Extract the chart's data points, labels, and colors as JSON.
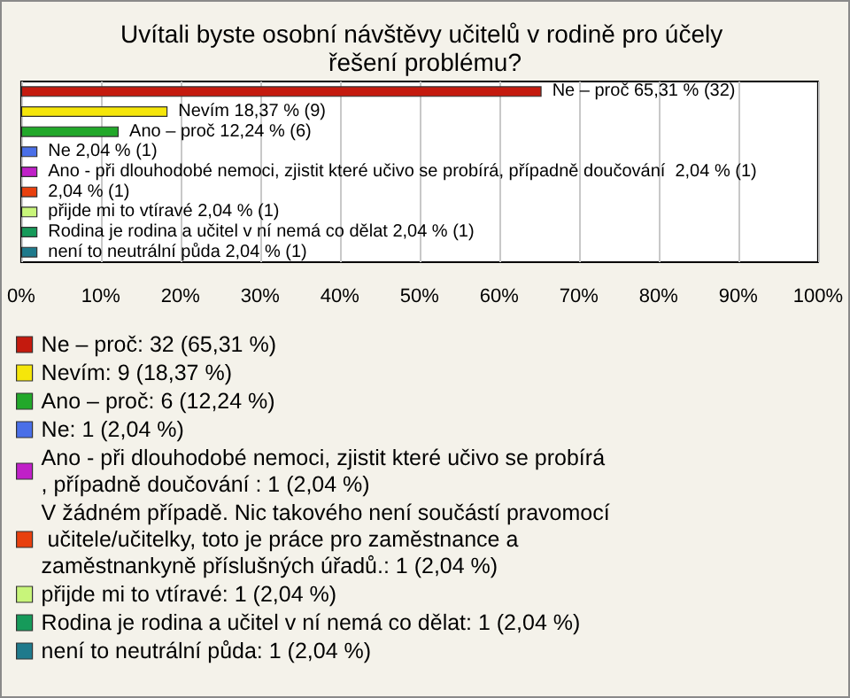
{
  "chart_data": {
    "type": "bar",
    "orientation": "horizontal",
    "title": "Uvítali byste osobní návštěvy učitelů v rodině pro účely řešení problému?",
    "categories": [
      null,
      null,
      null,
      null,
      null,
      null,
      null,
      null,
      null
    ],
    "series": [
      {
        "name": "Ne – proč: 32 (65,31 %)",
        "color": "#c41a0e",
        "values": [
          65.31,
          null,
          null,
          null,
          null,
          null,
          null,
          null,
          null
        ],
        "value_labels": [
          "Ne – proč 65,31 % (32)",
          null,
          null,
          null,
          null,
          null,
          null,
          null,
          null
        ]
      },
      {
        "name": "Nevím: 9 (18,37 %)",
        "color": "#f5e60a",
        "values": [
          null,
          18.37,
          null,
          null,
          null,
          null,
          null,
          null,
          null
        ],
        "value_labels": [
          null,
          "Nevím 18,37 % (9)",
          null,
          null,
          null,
          null,
          null,
          null,
          null
        ]
      },
      {
        "name": "Ano – proč: 6 (12,24 %)",
        "color": "#22a82a",
        "values": [
          null,
          null,
          12.24,
          null,
          null,
          null,
          null,
          null,
          null
        ],
        "value_labels": [
          null,
          null,
          "Ano – proč 12,24 % (6)",
          null,
          null,
          null,
          null,
          null,
          null
        ]
      },
      {
        "name": "Ne: 1 (2,04 %)",
        "color": "#4a6fe8",
        "values": [
          null,
          null,
          null,
          2.04,
          null,
          null,
          null,
          null,
          null
        ],
        "value_labels": [
          null,
          null,
          null,
          "Ne 2,04 % (1)",
          null,
          null,
          null,
          null,
          null
        ]
      },
      {
        "name": "Ano - při dlouhodobé nemoci, zjistit které učivo se probírá, případně doučování : 1 (2,04 %)",
        "color": "#c020c8",
        "values": [
          null,
          null,
          null,
          null,
          2.04,
          null,
          null,
          null,
          null
        ],
        "value_labels": [
          null,
          null,
          null,
          null,
          "Ano - při dlouhodobé nemoci, zjistit které učivo se probírá, případně doučování  2,04 % (1)",
          null,
          null,
          null,
          null
        ]
      },
      {
        "name": "V žádném případě. Nic takového není součástí pravomocí učitele/učitelky, toto je práce pro zaměstnance a zaměstnankyně příslušných úřadů.: 1 (2,04 %)",
        "color": "#e8400e",
        "values": [
          null,
          null,
          null,
          null,
          null,
          2.04,
          null,
          null,
          null
        ],
        "value_labels": [
          null,
          null,
          null,
          null,
          null,
          "2,04 % (1)",
          null,
          null,
          null
        ]
      },
      {
        "name": "přijde mi to vtíravé: 1 (2,04 %)",
        "color": "#c8f57a",
        "values": [
          null,
          null,
          null,
          null,
          null,
          null,
          2.04,
          null,
          null
        ],
        "value_labels": [
          null,
          null,
          null,
          null,
          null,
          null,
          "přijde mi to vtíravé 2,04 % (1)",
          null,
          null
        ]
      },
      {
        "name": "Rodina je rodina a učitel v ní nemá co dělat: 1 (2,04 %)",
        "color": "#169a5a",
        "values": [
          null,
          null,
          null,
          null,
          null,
          null,
          null,
          2.04,
          null
        ],
        "value_labels": [
          null,
          null,
          null,
          null,
          null,
          null,
          null,
          "Rodina je rodina a učitel v ní nemá co dělat 2,04 % (1)",
          null
        ]
      },
      {
        "name": "není to neutrální půda: 1 (2,04 %)",
        "color": "#1f7a8c",
        "values": [
          null,
          null,
          null,
          null,
          null,
          null,
          null,
          null,
          2.04
        ],
        "value_labels": [
          null,
          null,
          null,
          null,
          null,
          null,
          null,
          null,
          "není to neutrální půda 2,04 % (1)"
        ]
      }
    ],
    "xlim": [
      0,
      100
    ],
    "xticks": [
      {
        "value": 0,
        "label": "0%"
      },
      {
        "value": 10,
        "label": "10%"
      },
      {
        "value": 20,
        "label": "20%"
      },
      {
        "value": 30,
        "label": "30%"
      },
      {
        "value": 40,
        "label": "40%"
      },
      {
        "value": 50,
        "label": "50%"
      },
      {
        "value": 60,
        "label": "60%"
      },
      {
        "value": 70,
        "label": "70%"
      },
      {
        "value": 80,
        "label": "80%"
      },
      {
        "value": 90,
        "label": "90%"
      },
      {
        "value": 100,
        "label": "100%"
      }
    ],
    "grid": "x",
    "legend": "bottom",
    "tick_labels": "x"
  }
}
